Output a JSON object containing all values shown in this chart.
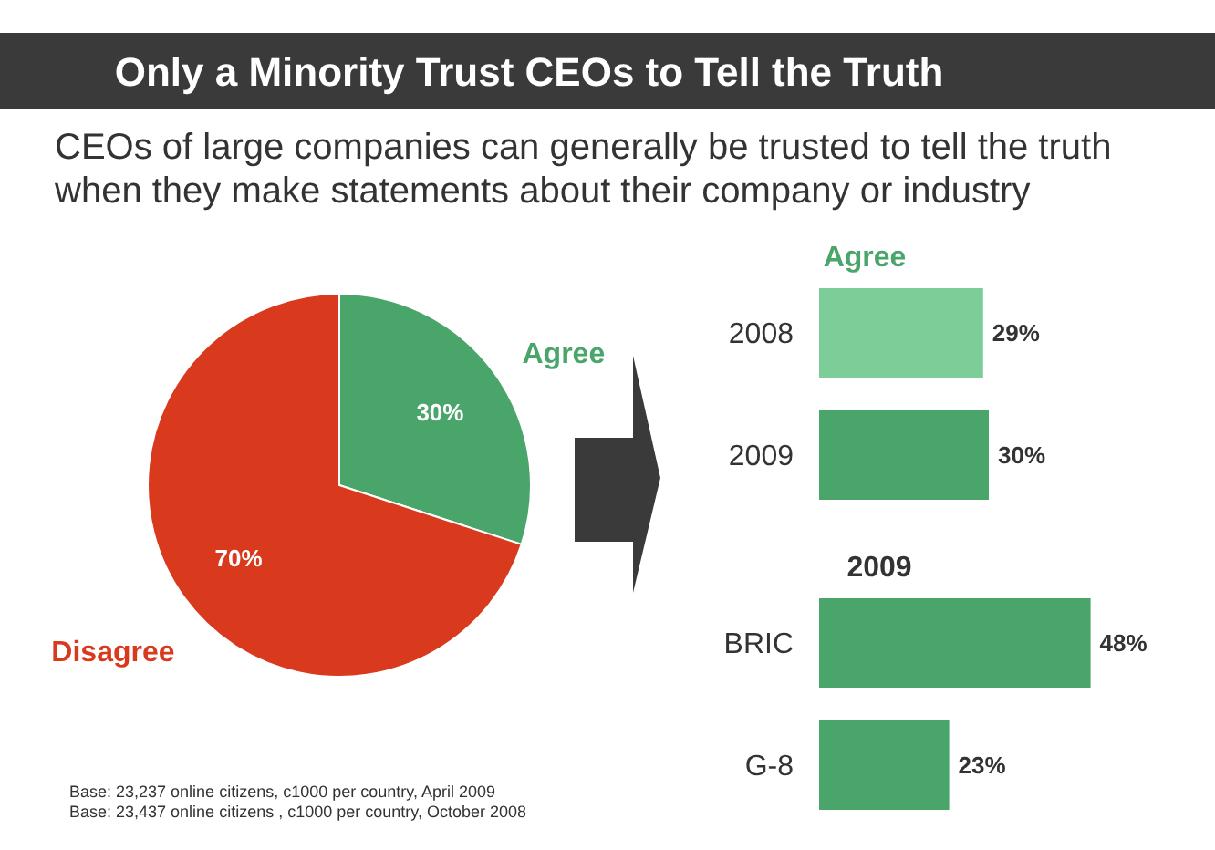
{
  "chart_data": [
    {
      "type": "pie",
      "title": "Only a Minority Trust CEOs to Tell the Truth",
      "subtitle": "CEOs of large companies can generally be trusted to tell the truth when they make statements about their company or industry",
      "categories": [
        "Agree",
        "Disagree"
      ],
      "values": [
        30,
        70
      ],
      "colors": [
        "#4aa56a",
        "#d93a1e"
      ],
      "value_labels": [
        "30%",
        "70%"
      ],
      "annotations": [
        "Base: 23,237 online citizens, c1000 per country, April 2009",
        "Base: 23,437 online citizens , c1000 per country, October 2008"
      ]
    },
    {
      "type": "bar",
      "orientation": "horizontal",
      "relative": false,
      "title": "Agree",
      "categories": [
        "2008",
        "2009"
      ],
      "values": [
        29,
        30
      ],
      "colors": [
        "#7dcd98",
        "#4aa56a"
      ],
      "value_labels": [
        "29%",
        "30%"
      ]
    },
    {
      "type": "bar",
      "orientation": "horizontal",
      "title": "2009",
      "categories": [
        "BRIC",
        "G-8"
      ],
      "values": [
        48,
        23
      ],
      "colors": [
        "#4aa56a",
        "#4aa56a"
      ],
      "value_labels": [
        "48%",
        "23%"
      ]
    }
  ]
}
